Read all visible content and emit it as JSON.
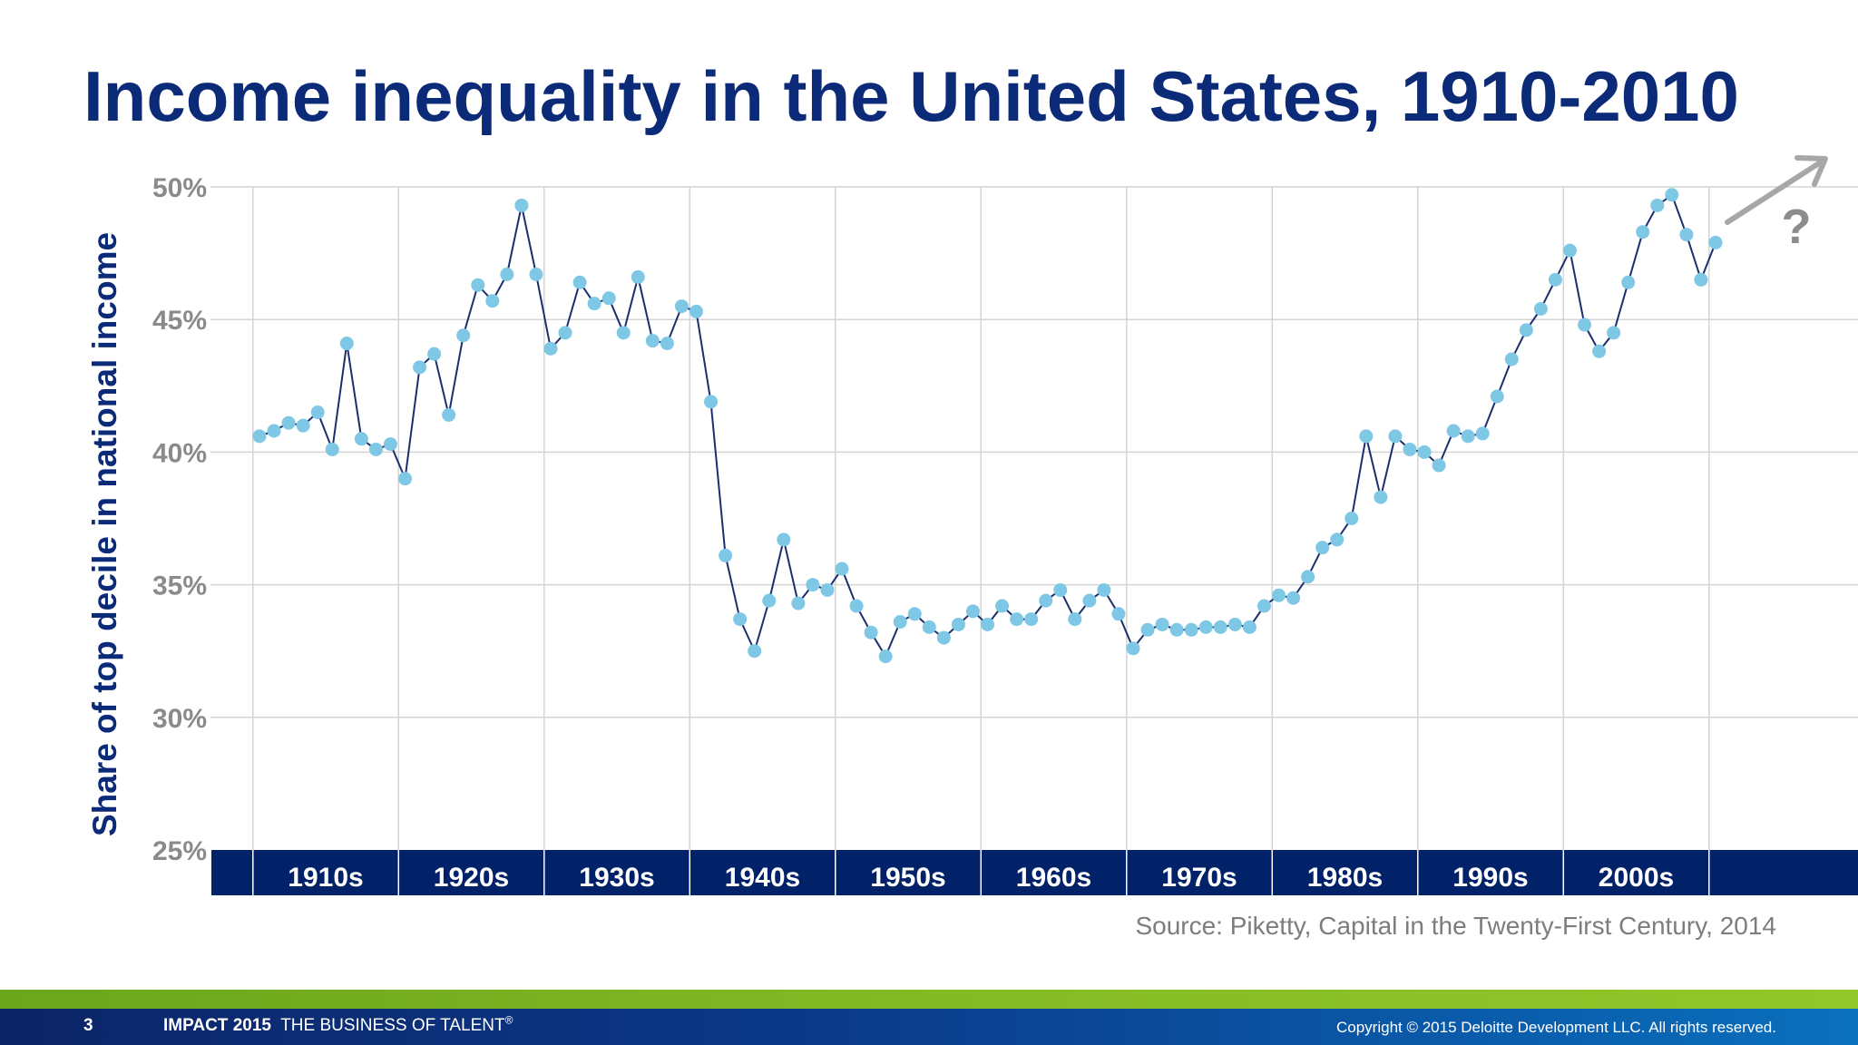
{
  "title": "Income inequality in the United States, 1910-2010",
  "source": "Source: Piketty, Capital in the Twenty-First Century, 2014",
  "footer": {
    "page_number": "3",
    "brand_bold": "IMPACT 2015",
    "brand_text": "THE BUSINESS OF TALENT",
    "brand_mark": "®",
    "copyright": "Copyright © 2015 Deloitte Development LLC. All rights reserved."
  },
  "colors": {
    "title": "#0b2a78",
    "band": "#012169",
    "marker": "#7ec8e6",
    "line": "#1a2f6e",
    "grid": "#d4d4d4",
    "tick": "#8a8a8a",
    "arrow": "#a7a7a7",
    "green": "#86bc25"
  },
  "chart_data": {
    "type": "line",
    "title": "Income inequality in the United States, 1910-2010",
    "xlabel": "",
    "ylabel": "Share of top decile in national income",
    "ylim": [
      25,
      50
    ],
    "xlim": [
      1905,
      2015
    ],
    "yticks": [
      25,
      30,
      35,
      40,
      45,
      50
    ],
    "ytick_labels": [
      "25%",
      "30%",
      "35%",
      "40%",
      "45%",
      "50%"
    ],
    "decades": [
      "1910s",
      "1920s",
      "1930s",
      "1940s",
      "1950s",
      "1960s",
      "1970s",
      "1980s",
      "1990s",
      "2000s"
    ],
    "grid": true,
    "annotation": "?",
    "series": [
      {
        "name": "Top decile share",
        "x": [
          1910,
          1911,
          1912,
          1913,
          1914,
          1915,
          1916,
          1917,
          1918,
          1919,
          1920,
          1921,
          1922,
          1923,
          1924,
          1925,
          1926,
          1927,
          1928,
          1929,
          1930,
          1931,
          1932,
          1933,
          1934,
          1935,
          1936,
          1937,
          1938,
          1939,
          1940,
          1941,
          1942,
          1943,
          1944,
          1945,
          1946,
          1947,
          1948,
          1949,
          1950,
          1951,
          1952,
          1953,
          1954,
          1955,
          1956,
          1957,
          1958,
          1959,
          1960,
          1961,
          1962,
          1963,
          1964,
          1965,
          1966,
          1967,
          1968,
          1969,
          1970,
          1971,
          1972,
          1973,
          1974,
          1975,
          1976,
          1977,
          1978,
          1979,
          1980,
          1981,
          1982,
          1983,
          1984,
          1985,
          1986,
          1987,
          1988,
          1989,
          1990,
          1991,
          1992,
          1993,
          1994,
          1995,
          1996,
          1997,
          1998,
          1999,
          2000,
          2001,
          2002,
          2003,
          2004,
          2005,
          2006,
          2007,
          2008,
          2009,
          2010
        ],
        "values": [
          40.6,
          40.8,
          41.1,
          41.0,
          41.5,
          40.1,
          44.1,
          40.5,
          40.1,
          40.3,
          39.0,
          43.2,
          43.7,
          41.4,
          44.4,
          46.3,
          45.7,
          46.7,
          49.3,
          46.7,
          43.9,
          44.5,
          46.4,
          45.6,
          45.8,
          44.5,
          46.6,
          44.2,
          44.1,
          45.5,
          45.3,
          41.9,
          36.1,
          33.7,
          32.5,
          34.4,
          36.7,
          34.3,
          35.0,
          34.8,
          35.6,
          34.2,
          33.2,
          32.3,
          33.6,
          33.9,
          33.4,
          33.0,
          33.5,
          34.0,
          33.5,
          34.2,
          33.7,
          33.7,
          34.4,
          34.8,
          33.7,
          34.4,
          34.8,
          33.9,
          32.6,
          33.3,
          33.5,
          33.3,
          33.3,
          33.4,
          33.4,
          33.5,
          33.4,
          34.2,
          34.6,
          34.5,
          35.3,
          36.4,
          36.7,
          37.5,
          40.6,
          38.3,
          40.6,
          40.1,
          40.0,
          39.5,
          40.8,
          40.6,
          40.7,
          42.1,
          43.5,
          44.6,
          45.4,
          46.5,
          47.6,
          44.8,
          43.8,
          44.5,
          46.4,
          48.3,
          49.3,
          49.7,
          48.2,
          46.5,
          47.9
        ]
      }
    ]
  }
}
